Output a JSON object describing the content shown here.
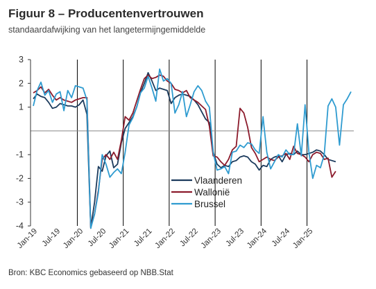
{
  "title": "Figuur 8 – Producentenvertrouwen",
  "subtitle": "standaardafwijking van het langetermijngemiddelde",
  "source": "Bron: KBC Economics gebaseerd op NBB.Stat",
  "colors": {
    "axis": "#333333",
    "vline": "#000000",
    "zero": "#888888"
  },
  "chart_data": {
    "type": "line",
    "title": "Figuur 8 – Producentenvertrouwen",
    "subtitle": "standaardafwijking van het langetermijngemiddelde",
    "xlabel": "",
    "ylabel": "",
    "ylim": [
      -4,
      3
    ],
    "yticks": [
      3,
      2,
      1,
      -1,
      -2,
      -3,
      -4
    ],
    "ytick_labels": [
      "3",
      "2",
      "1",
      "-1",
      "-2",
      "-3",
      "-4"
    ],
    "x_start": "2019-01",
    "xtick_labels": [
      "Jan-19",
      "Jul-19",
      "Jan-20",
      "Jul-20",
      "Jan-21",
      "Jul-21",
      "Jan-22",
      "Jul-22",
      "Jan-23",
      "Jul-23",
      "Jan-24",
      "Jul-24",
      "Jan-25"
    ],
    "vlines": [
      "2020-01",
      "2021-01",
      "2022-01",
      "2023-01",
      "2024-01",
      "2025-01"
    ],
    "zero_line": 0,
    "legend_position": "center-bottom",
    "series": [
      {
        "name": "Vlaanderen",
        "color": "#1b3a5c",
        "values": [
          1.35,
          1.55,
          1.45,
          1.4,
          1.2,
          0.95,
          1.0,
          1.15,
          1.1,
          1.05,
          1.05,
          1.0,
          1.1,
          1.3,
          0.7,
          -4.1,
          -3.0,
          -1.5,
          -1.7,
          -1.05,
          -0.85,
          -1.55,
          -1.4,
          -0.5,
          0.1,
          0.35,
          0.6,
          1.0,
          1.6,
          2.0,
          2.45,
          2.1,
          1.7,
          1.8,
          1.75,
          1.7,
          1.15,
          1.4,
          1.5,
          1.55,
          1.5,
          1.45,
          1.3,
          1.1,
          0.8,
          0.5,
          0.35,
          -0.9,
          -1.4,
          -1.55,
          -1.45,
          -1.5,
          -1.3,
          -1.25,
          -1.1,
          -1.05,
          -1.1,
          -1.3,
          -1.4,
          -1.65,
          -1.45,
          -1.5,
          -1.2,
          -1.1,
          -1.05,
          -1.3,
          -1.0,
          -0.95,
          -1.0,
          -0.85,
          -1.0,
          -1.0,
          -0.95,
          -0.9,
          -0.8,
          -0.85,
          -1.0,
          -1.2,
          -1.25,
          -1.3
        ]
      },
      {
        "name": "Wallonië",
        "color": "#8b1a2b",
        "values": [
          1.6,
          1.7,
          1.85,
          1.6,
          1.75,
          1.5,
          1.3,
          1.4,
          1.3,
          1.25,
          1.2,
          1.3,
          1.35,
          1.4,
          1.4,
          -4.05,
          -3.5,
          -2.5,
          -1.2,
          -1.0,
          -1.2,
          -0.9,
          -1.2,
          -0.4,
          0.6,
          0.45,
          0.75,
          1.25,
          1.75,
          2.2,
          2.35,
          2.2,
          2.25,
          2.35,
          2.3,
          2.1,
          2.0,
          1.75,
          1.7,
          1.6,
          1.7,
          1.4,
          1.3,
          1.2,
          1.05,
          0.9,
          0.2,
          -1.05,
          -1.1,
          -1.3,
          -1.45,
          -1.2,
          -0.8,
          -0.65,
          0.95,
          0.75,
          0.15,
          -0.7,
          -0.95,
          -1.3,
          -1.2,
          -1.1,
          -1.2,
          -1.25,
          -1.1,
          -1.05,
          -0.95,
          -1.2,
          -0.65,
          -0.95,
          -1.0,
          -1.1,
          -1.3,
          -1.0,
          -0.9,
          -0.95,
          -1.2,
          -1.15,
          -1.95,
          -1.7
        ]
      },
      {
        "name": "Brussel",
        "color": "#2e9bd0",
        "values": [
          1.05,
          1.7,
          2.05,
          1.5,
          1.7,
          1.2,
          1.55,
          1.65,
          0.85,
          1.7,
          1.4,
          1.9,
          1.85,
          1.8,
          1.3,
          -4.1,
          -3.5,
          -2.6,
          -1.0,
          -1.4,
          -1.95,
          -1.75,
          -1.6,
          -1.8,
          -0.9,
          0.25,
          0.55,
          1.0,
          1.6,
          1.8,
          2.3,
          1.8,
          1.25,
          2.6,
          2.1,
          2.2,
          2.0,
          0.75,
          1.1,
          1.65,
          0.6,
          1.1,
          1.65,
          1.9,
          1.7,
          1.25,
          1.0,
          -0.9,
          -1.65,
          -1.6,
          -1.5,
          -1.8,
          -0.9,
          -0.85,
          -0.6,
          -0.7,
          -0.5,
          -0.55,
          -0.8,
          -0.95,
          0.6,
          -0.9,
          -1.6,
          -1.3,
          -1.0,
          -1.1,
          -0.8,
          -1.0,
          -1.0,
          0.3,
          -1.05,
          1.1,
          -0.9,
          -2.0,
          -1.45,
          -1.55,
          -1.0,
          1.05,
          1.35,
          1.0,
          -0.6,
          1.1,
          1.35,
          1.65
        ]
      }
    ]
  }
}
